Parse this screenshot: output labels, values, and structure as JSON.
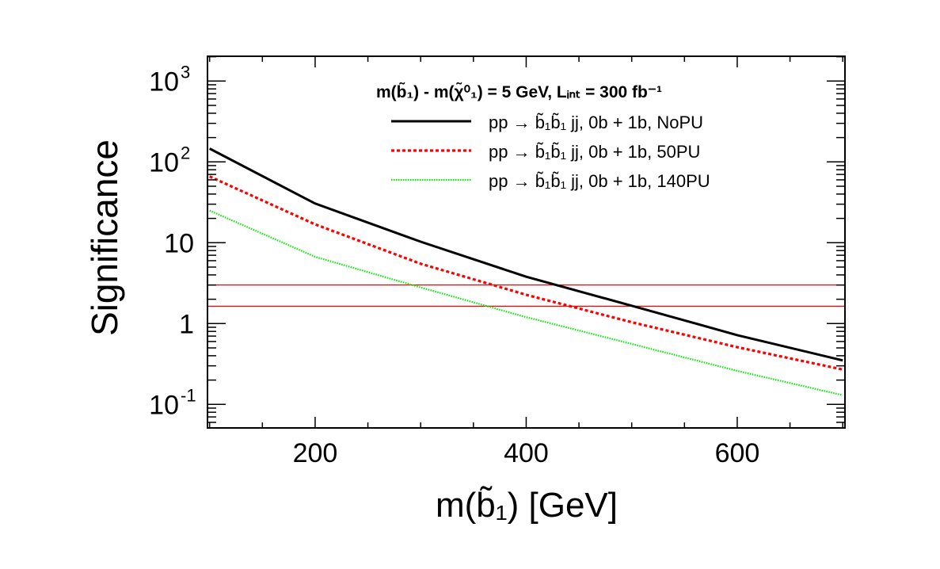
{
  "chart_data": {
    "type": "line",
    "title": "",
    "xlabel": "m(b̃₁) [GeV]",
    "ylabel": "Significance",
    "xlim": [
      100,
      700
    ],
    "ylim": [
      0.05,
      2000
    ],
    "yscale": "log",
    "grid": false,
    "x_ticks": [
      {
        "value": 200,
        "label": "200"
      },
      {
        "value": 400,
        "label": "400"
      },
      {
        "value": 600,
        "label": "600"
      }
    ],
    "y_ticks": [
      {
        "value": 1000,
        "label": "10",
        "exp": "3"
      },
      {
        "value": 100,
        "label": "10",
        "exp": "2"
      },
      {
        "value": 10,
        "label": "10",
        "exp": ""
      },
      {
        "value": 1,
        "label": "1",
        "exp": ""
      },
      {
        "value": 0.1,
        "label": "10",
        "exp": "-1"
      }
    ],
    "legend": {
      "placement": "top-right",
      "header": "m(b̃₁) - m(χ̃⁰₁) = 5 GeV, Lᵢₙₜ = 300 fb⁻¹"
    },
    "x": [
      100,
      200,
      300,
      400,
      500,
      600,
      700
    ],
    "series": [
      {
        "name": "pp → b̃₁b̃₁ jj, 0b + 1b, NoPU",
        "color": "#000000",
        "style": "solid",
        "values": [
          146,
          30.6,
          10.3,
          3.8,
          1.66,
          0.72,
          0.35
        ]
      },
      {
        "name": "pp → b̃₁b̃₁ jj, 0b + 1b, 50PU",
        "color": "#ff0000",
        "style": "dashed",
        "values": [
          66,
          16.9,
          5.5,
          2.27,
          1.04,
          0.51,
          0.27
        ]
      },
      {
        "name": "pp → b̃₁b̃₁ jj, 0b + 1b, 140PU",
        "color": "#00ee00",
        "style": "dotted",
        "values": [
          25,
          6.7,
          2.8,
          1.2,
          0.56,
          0.26,
          0.13
        ]
      }
    ],
    "reference_lines": [
      {
        "y": 3,
        "color": "#ff0000"
      },
      {
        "y": 1.64,
        "color": "#ff0000"
      }
    ]
  }
}
